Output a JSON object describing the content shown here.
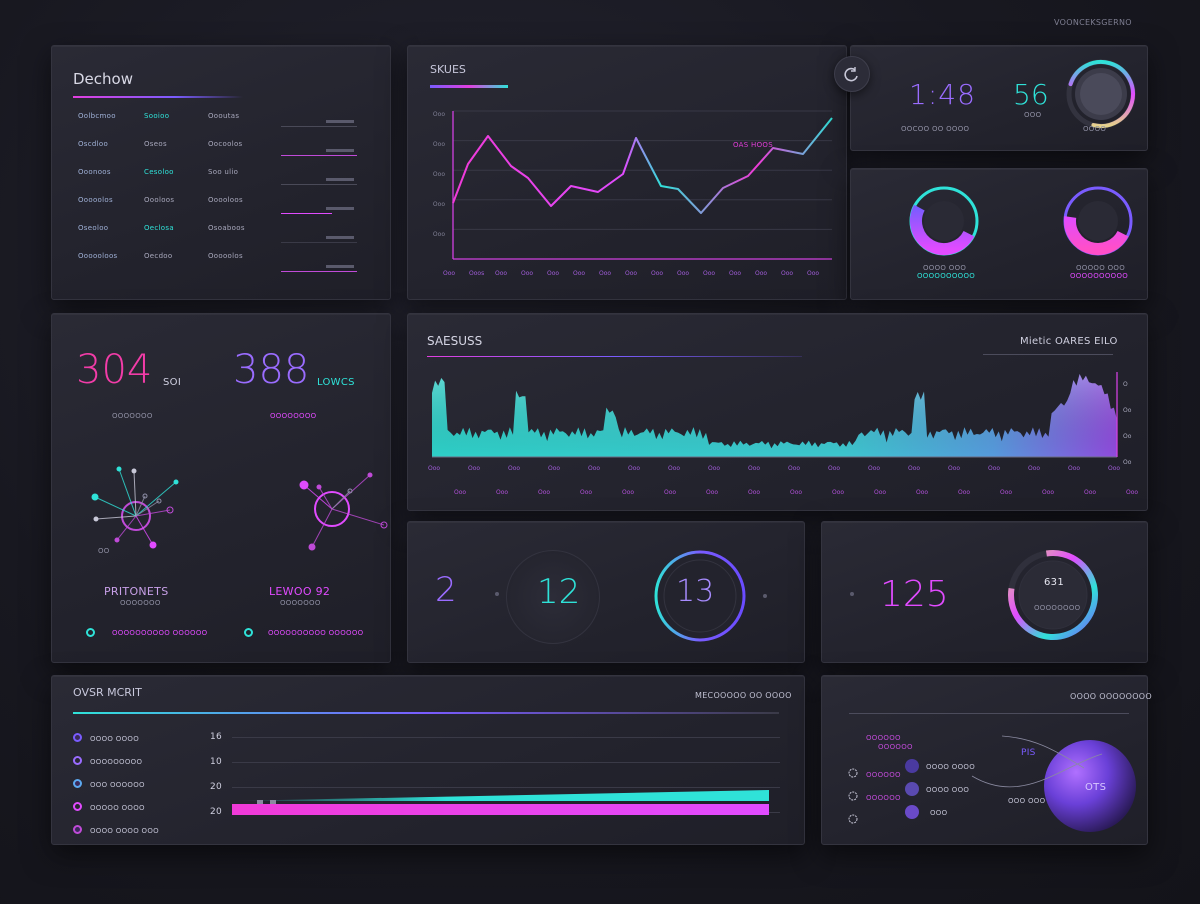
{
  "top_right_label": "VOONCEKSGERNO",
  "left_top": {
    "title": "Dechow",
    "rows": [
      [
        "Oolbcmoo",
        "Sooioo",
        "Oooutas"
      ],
      [
        "Oscdloo",
        "Oseos",
        "Oocoolos"
      ],
      [
        "Ooonoos",
        "Cesoloo",
        "Soo ulio"
      ],
      [
        "Ooooolos",
        "Oooloos",
        "Ooooloos"
      ],
      [
        "Oseoloo",
        "Oeclosa",
        "Osoaboos"
      ],
      [
        "Oooooloos",
        "Oecdoo",
        "Ooooolos"
      ]
    ]
  },
  "revenue": {
    "title": "SKUES",
    "series_label": "OAS HOOS",
    "y_labels": [
      "Ooo",
      "Ooo",
      "Ooo",
      "Ooo",
      "Ooo"
    ],
    "x_labels": [
      "Ooo",
      "Ooos",
      "Ooo",
      "Ooo",
      "Ooo",
      "Ooo",
      "Ooo",
      "Ooo",
      "Ooo",
      "Ooo",
      "Ooo",
      "Ooo",
      "Ooo",
      "Ooo",
      "Ooo"
    ]
  },
  "top_stats": {
    "stat_a": "1:48",
    "stat_a_label": "OOCOO OO OOOO",
    "stat_b": "56",
    "stat_b_label": "OOO",
    "gauge_label": "OOOO",
    "gauge_fraction": 0.82
  },
  "donuts": {
    "left_label": "OOOO OOO",
    "left_sublabel": "OOOOOOOOOO",
    "left_fraction": 0.72,
    "right_label": "OOOOO OOO",
    "right_sublabel": "OOOOOOOOOO",
    "right_fraction": 0.64
  },
  "metrics": {
    "value_a": "304",
    "unit_a": "SOI",
    "label_a": "OOOOOOO",
    "value_b": "388",
    "unit_b": "LOWCS",
    "label_b": "OOOOOOOO",
    "network_a_title": "PRITONETS",
    "network_a_sub": "OOOOOOO",
    "network_b_title": "LEWOO 92",
    "network_b_sub": "OOOOOOO",
    "legend_a": "OOOOOOOOOO OOOOOO",
    "legend_b": "OOOOOOOOOO OOOOOO",
    "network_note": "OO"
  },
  "sales": {
    "title": "SAESUSS",
    "right_title": "Mietic OARES EILO",
    "y_labels": [
      "O",
      "Oo",
      "Oo",
      "Oo"
    ],
    "x_labels": [
      "Ooo",
      "Ooo",
      "Ooo",
      "Ooo",
      "Ooo",
      "Ooo",
      "Ooo",
      "Ooo",
      "Ooo",
      "Ooo",
      "Ooo",
      "Ooo",
      "Ooo",
      "Ooo",
      "Ooo",
      "Ooo",
      "Ooo",
      "Ooo",
      "Ooo",
      "Ooo",
      "Ooo",
      "Ooo",
      "Ooo",
      "Ooo",
      "Ooo",
      "Ooo",
      "Ooo",
      "Ooo",
      "Ooo",
      "Ooo",
      "Ooo",
      "Ooo",
      "Ooo",
      "Ooo",
      "Ooo"
    ]
  },
  "kpis": {
    "k1": "2",
    "k2": "12",
    "k3": "13",
    "k3_fraction": 0.68,
    "k4": "125",
    "k5": "631",
    "k5_label": "OOOOOOOO",
    "k5_fraction": 0.8
  },
  "bottom_left": {
    "title": "OVSR MCRIT",
    "right_title": "MECOOOOO OO OOOO",
    "legend": [
      "OOOO OOOO",
      "OOOOOOOOO",
      "OOO OOOOOO",
      "OOOOO OOOO",
      "OOOO OOOO OOO"
    ],
    "axis_labels": [
      "16",
      "10",
      "20",
      "20"
    ],
    "bar_cyan_fraction": 0.98,
    "bar_pink_fraction": 0.98
  },
  "bottom_right": {
    "title": "OOOO OOOOOOOO",
    "left_labels": [
      "OOOOOO",
      "OOOOOO",
      "OOOOOO",
      "OOOOOO"
    ],
    "mid_labels": [
      "OOOO OOOO",
      "OOOO OOO",
      "OOO"
    ],
    "side_labels": [
      "PIS",
      "OOO OOO"
    ],
    "sphere_label": "OTS"
  },
  "colors": {
    "pink": "#f03ad8",
    "magenta": "#e14bff",
    "cyan": "#2fe2d8",
    "purple": "#7a5cff",
    "yellow": "#e4d38a"
  }
}
